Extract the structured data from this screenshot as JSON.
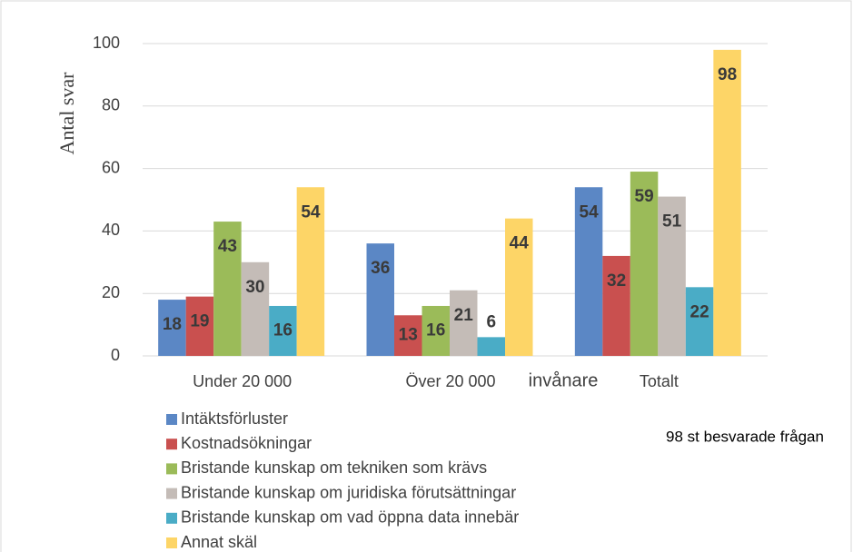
{
  "chart_data": {
    "type": "bar",
    "y_label": "Antal svar",
    "categories": [
      "Under 20 000",
      "Över 20 000",
      "Totalt"
    ],
    "series": [
      {
        "name": "Intäktsförluster",
        "color": "#5b87c5",
        "values": [
          18,
          36,
          54
        ]
      },
      {
        "name": "Kostnadsökningar",
        "color": "#c9504f",
        "values": [
          19,
          13,
          32
        ]
      },
      {
        "name": "Bristande kunskap om tekniken som krävs",
        "color": "#9bbb59",
        "values": [
          43,
          16,
          59
        ]
      },
      {
        "name": "Bristande kunskap om juridiska förutsättningar",
        "color": "#c4bcb7",
        "values": [
          30,
          21,
          51
        ]
      },
      {
        "name": "Bristande kunskap om vad öppna data innebär",
        "color": "#4aacc6",
        "values": [
          16,
          6,
          22
        ]
      },
      {
        "name": "Annat skäl",
        "color": "#fdd567",
        "values": [
          54,
          44,
          98
        ]
      }
    ],
    "annotations": [
      "invånare",
      "98 st besvarade frågan"
    ],
    "ylim": [
      0,
      100
    ],
    "yticks": [
      0,
      20,
      40,
      60,
      80,
      100
    ],
    "grid": true
  }
}
